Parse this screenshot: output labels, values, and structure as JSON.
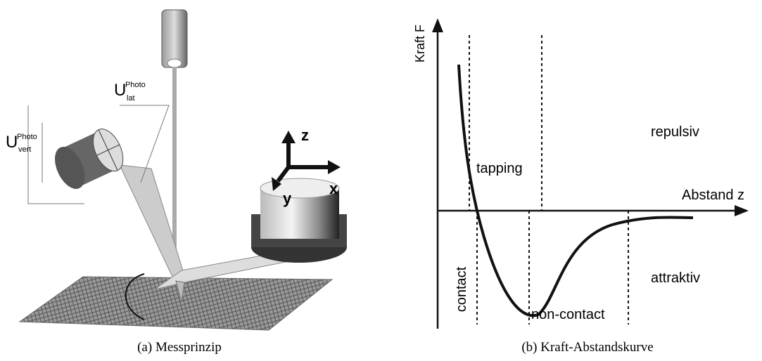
{
  "panel_a": {
    "caption": "(a) Messprinzip",
    "photo_lat": {
      "main": "U",
      "sup": "Photo",
      "sub": "lat"
    },
    "photo_vert": {
      "main": "U",
      "sup": "Photo",
      "sub": "vert"
    },
    "axes": {
      "z": "z",
      "x": "x",
      "y": "y"
    }
  },
  "panel_b": {
    "caption": "(b) Kraft-Abstandskurve",
    "y_axis_label": "Kraft F",
    "x_axis_label": "Abstand z",
    "regions": {
      "repulsiv": "repulsiv",
      "tapping": "tapping",
      "contact": "contact",
      "non_contact": "non-contact",
      "attraktiv": "attraktiv"
    }
  }
}
